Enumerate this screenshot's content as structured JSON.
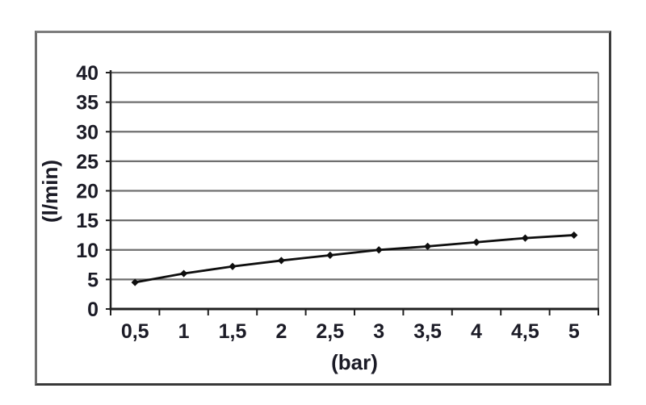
{
  "chart_data": {
    "type": "line",
    "categories": [
      "0,5",
      "1",
      "1,5",
      "2",
      "2,5",
      "3",
      "3,5",
      "4",
      "4,5",
      "5"
    ],
    "values": [
      4.5,
      6.0,
      7.2,
      8.2,
      9.1,
      10.0,
      10.6,
      11.3,
      12.0,
      12.5
    ],
    "title": "",
    "xlabel": "(bar)",
    "ylabel": "(l/min)",
    "yticks": [
      0,
      5,
      10,
      15,
      20,
      25,
      30,
      35,
      40
    ],
    "ylim": [
      0,
      40
    ],
    "grid": true,
    "legend_position": "none",
    "marker": "diamond",
    "colors": {
      "line": "#0e0e0e",
      "marker": "#0e0e0e",
      "grid": "#6f6f6f",
      "axis": "#1f1f1f",
      "plot_right_border": "#8a8a8a",
      "text": "#1b1b26",
      "frame": "#555555",
      "background": "#ffffff"
    }
  }
}
